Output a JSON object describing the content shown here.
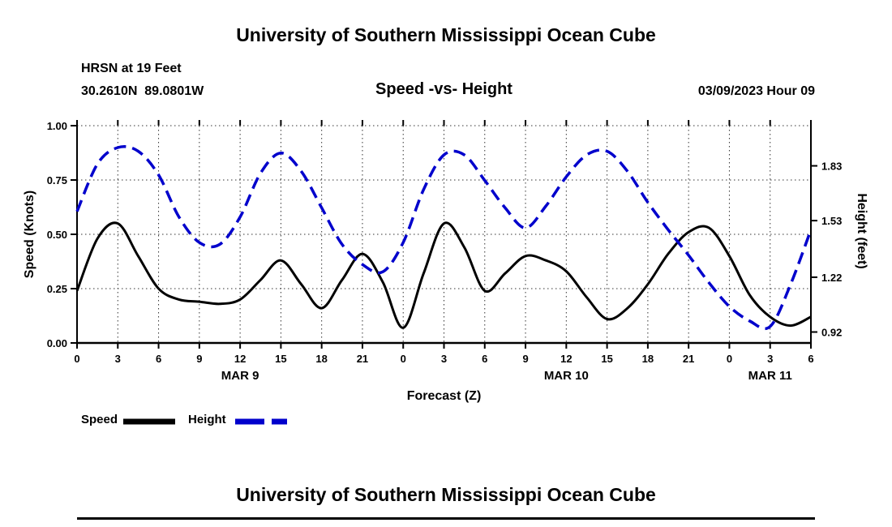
{
  "header": {
    "main_title": "University of Southern Mississippi Ocean Cube",
    "station_line1": "HRSN at 19 Feet",
    "station_line2": "30.2610N  89.0801W",
    "chart_title": "Speed -vs- Height",
    "datetime": "03/09/2023 Hour 09"
  },
  "legend": {
    "speed_label": "Speed",
    "height_label": "Height",
    "speed_color": "#000000",
    "height_color": "#0000cc"
  },
  "footer": {
    "next_title": "University of Southern Mississippi Ocean Cube"
  },
  "chart_data": {
    "type": "line",
    "title": "Speed -vs- Height",
    "xlabel": "Forecast (Z)",
    "ylabel_left": "Speed (Knots)",
    "ylabel_right": "Height (feet)",
    "grid": "dotted",
    "x_hours_total": 54,
    "x_tick_step": 3,
    "x_tick_labels": [
      "0",
      "3",
      "6",
      "9",
      "12",
      "15",
      "18",
      "21",
      "0",
      "3",
      "6",
      "9",
      "12",
      "15",
      "18",
      "21",
      "0",
      "3",
      "6"
    ],
    "day_labels": [
      {
        "label": "MAR 9",
        "hour": 12
      },
      {
        "label": "MAR 10",
        "hour": 36
      },
      {
        "label": "MAR 11",
        "hour": 51
      }
    ],
    "ylim_left": [
      0.0,
      1.0
    ],
    "yticks_left": [
      "0.00",
      "0.25",
      "0.50",
      "0.75",
      "1.00"
    ],
    "ylim_right": [
      0.86,
      2.05
    ],
    "yticks_right": [
      "1.83",
      "1.53",
      "1.22",
      "0.92"
    ],
    "series": [
      {
        "name": "Speed",
        "axis": "left",
        "units": "Knots",
        "color": "#000000",
        "style": "solid",
        "x": [
          0,
          1.5,
          3,
          4.5,
          6,
          7.5,
          9,
          10.5,
          12,
          13.5,
          15,
          16.5,
          18,
          19.5,
          21,
          22.5,
          24,
          25.5,
          27,
          28.5,
          30,
          31.5,
          33,
          34.5,
          36,
          37.5,
          39,
          40.5,
          42,
          43.5,
          45,
          46.5,
          48,
          49.5,
          51,
          52.5,
          54
        ],
        "values": [
          0.24,
          0.48,
          0.55,
          0.4,
          0.25,
          0.2,
          0.19,
          0.18,
          0.2,
          0.29,
          0.38,
          0.27,
          0.16,
          0.29,
          0.41,
          0.28,
          0.07,
          0.32,
          0.55,
          0.44,
          0.24,
          0.32,
          0.4,
          0.38,
          0.33,
          0.21,
          0.11,
          0.16,
          0.27,
          0.41,
          0.51,
          0.53,
          0.4,
          0.22,
          0.12,
          0.08,
          0.12
        ]
      },
      {
        "name": "Height",
        "axis": "right",
        "units": "feet",
        "color": "#0000cc",
        "style": "dashed",
        "x": [
          0,
          1.5,
          3,
          4.5,
          6,
          7.5,
          9,
          10.5,
          12,
          13.5,
          15,
          16.5,
          18,
          19.5,
          21,
          22.5,
          24,
          25.5,
          27,
          28.5,
          30,
          31.5,
          33,
          34.5,
          36,
          37.5,
          39,
          40.5,
          42,
          43.5,
          45,
          46.5,
          48,
          49.5,
          51,
          52.5,
          54
        ],
        "values": [
          1.58,
          1.84,
          1.93,
          1.91,
          1.78,
          1.55,
          1.41,
          1.4,
          1.55,
          1.79,
          1.9,
          1.8,
          1.6,
          1.4,
          1.29,
          1.25,
          1.41,
          1.7,
          1.89,
          1.89,
          1.75,
          1.6,
          1.49,
          1.61,
          1.77,
          1.89,
          1.91,
          1.8,
          1.63,
          1.48,
          1.34,
          1.19,
          1.06,
          0.98,
          0.95,
          1.18,
          1.48
        ]
      }
    ]
  }
}
